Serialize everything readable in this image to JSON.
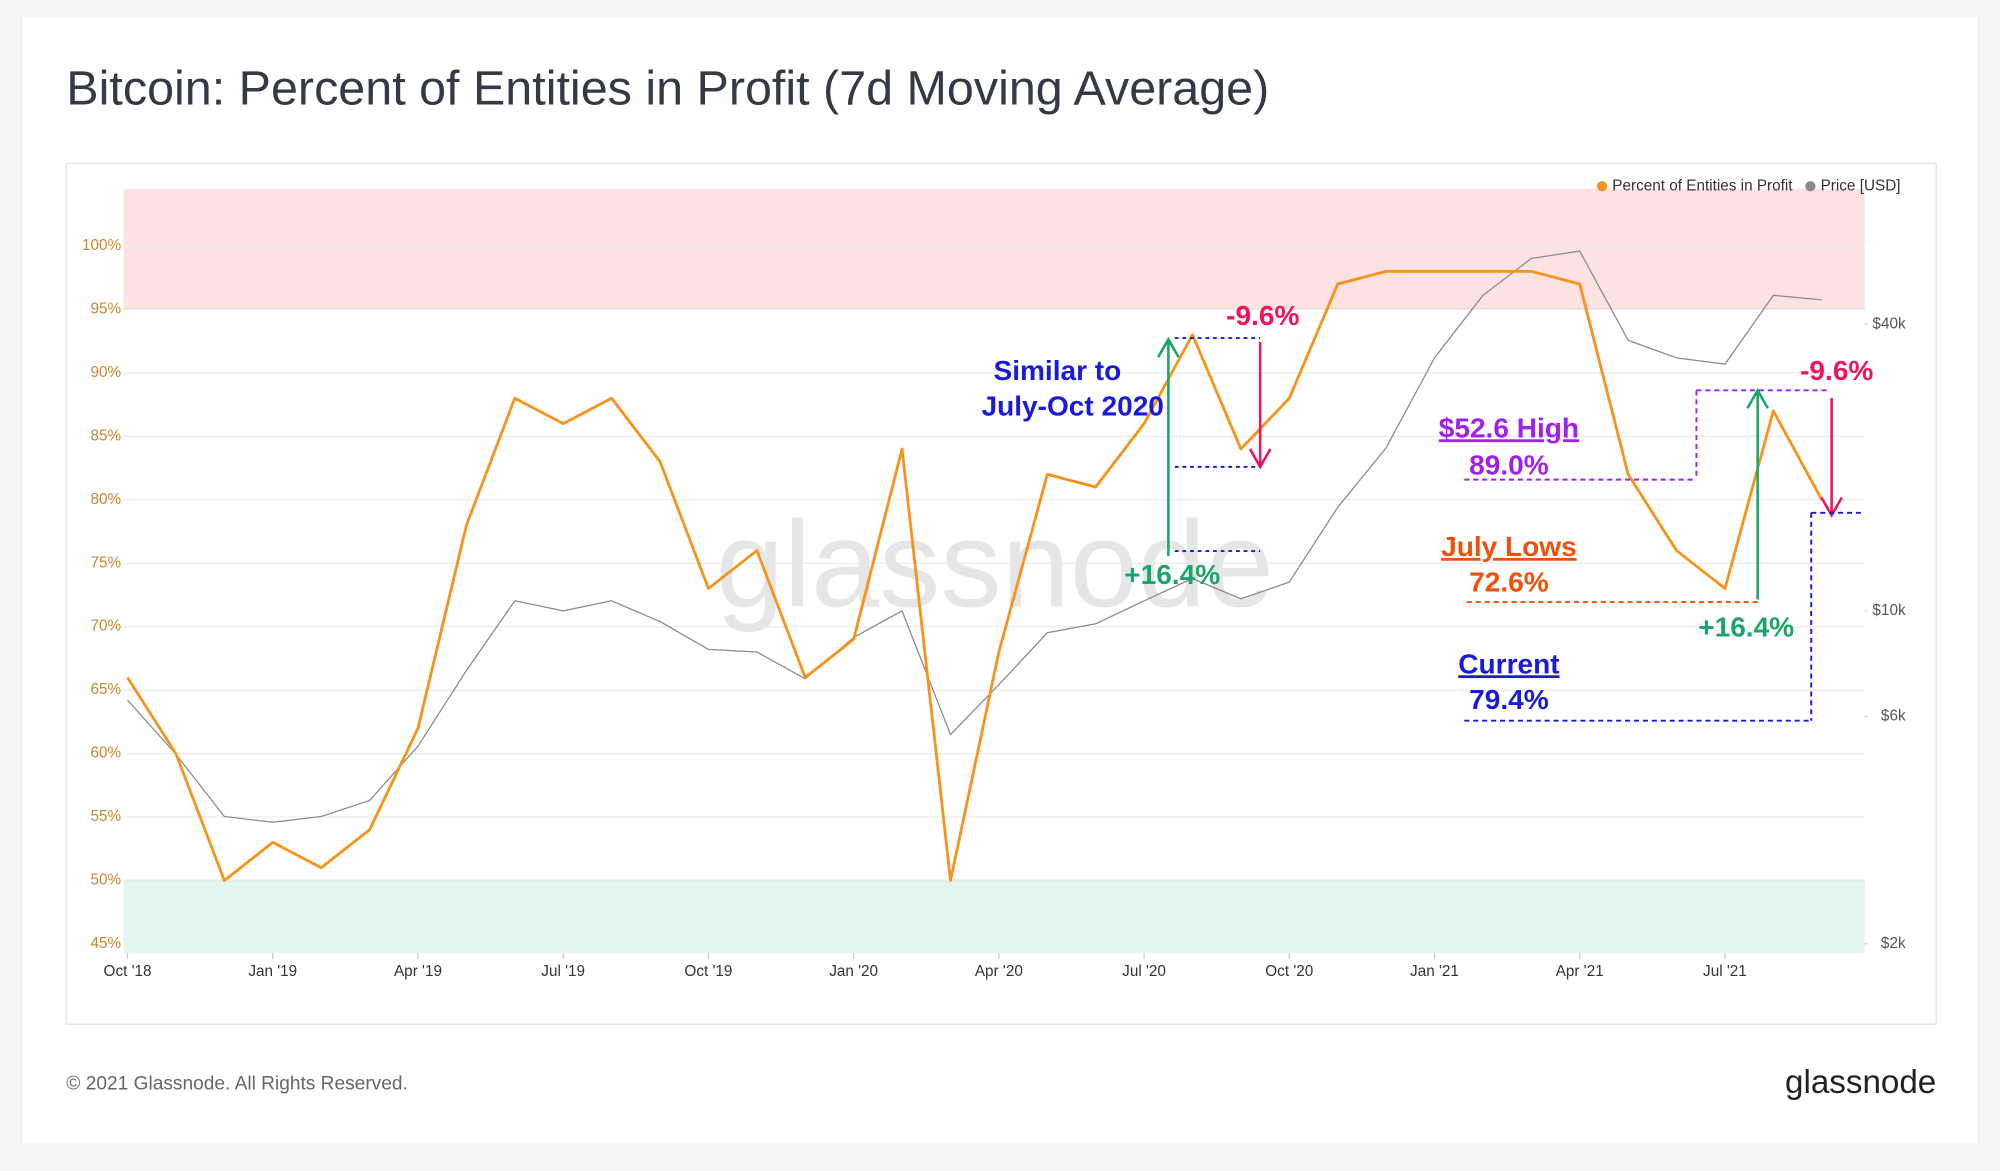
{
  "chart_data": {
    "type": "line",
    "title": "Bitcoin: Percent of Entities in Profit (7d Moving Average)",
    "x": [
      "2018-10",
      "2018-11",
      "2018-12",
      "2019-01",
      "2019-02",
      "2019-03",
      "2019-04",
      "2019-05",
      "2019-06",
      "2019-07",
      "2019-08",
      "2019-09",
      "2019-10",
      "2019-11",
      "2019-12",
      "2020-01",
      "2020-02",
      "2020-03",
      "2020-04",
      "2020-05",
      "2020-06",
      "2020-07",
      "2020-08",
      "2020-09",
      "2020-10",
      "2020-11",
      "2020-12",
      "2021-01",
      "2021-02",
      "2021-03",
      "2021-04",
      "2021-05",
      "2021-06",
      "2021-07",
      "2021-08",
      "2021-09"
    ],
    "series": [
      {
        "name": "Percent of Entities in Profit",
        "color": "#f7931a",
        "axis": "y",
        "values": [
          66,
          60,
          50,
          53,
          51,
          54,
          62,
          78,
          88,
          86,
          88,
          83,
          73,
          76,
          66,
          69,
          84,
          50,
          68,
          82,
          81,
          86,
          93,
          84,
          88,
          97,
          98,
          98,
          98,
          98,
          97,
          82,
          76,
          73,
          87,
          80
        ]
      },
      {
        "name": "Price [USD]",
        "color": "#8a8a8a",
        "axis": "y2",
        "values": [
          6500,
          5000,
          3700,
          3600,
          3700,
          4000,
          5200,
          7500,
          10500,
          10000,
          10500,
          9500,
          8300,
          8200,
          7200,
          8800,
          10000,
          5500,
          7000,
          9000,
          9400,
          10500,
          11700,
          10600,
          11500,
          16500,
          22000,
          34000,
          46000,
          55000,
          57000,
          37000,
          34000,
          33000,
          46000,
          45000
        ]
      }
    ],
    "ylim": [
      44.3,
      104.5
    ],
    "yticks": [
      {
        "value": 45,
        "label": "45%"
      },
      {
        "value": 50,
        "label": "50%"
      },
      {
        "value": 55,
        "label": "55%"
      },
      {
        "value": 60,
        "label": "60%"
      },
      {
        "value": 65,
        "label": "65%"
      },
      {
        "value": 70,
        "label": "70%"
      },
      {
        "value": 75,
        "label": "75%"
      },
      {
        "value": 80,
        "label": "80%"
      },
      {
        "value": 85,
        "label": "85%"
      },
      {
        "value": 90,
        "label": "90%"
      },
      {
        "value": 95,
        "label": "95%"
      },
      {
        "value": 100,
        "label": "100%"
      }
    ],
    "y2lim": [
      1914,
      77000
    ],
    "y2scale": "log",
    "y2ticks": [
      {
        "value": 2000,
        "label": "$2k"
      },
      {
        "value": 6000,
        "label": "$6k"
      },
      {
        "value": 10000,
        "label": "$10k"
      },
      {
        "value": 40000,
        "label": "$40k"
      }
    ],
    "xticks": [
      {
        "value": "2018-10",
        "label": "Oct '18"
      },
      {
        "value": "2019-01",
        "label": "Jan '19"
      },
      {
        "value": "2019-04",
        "label": "Apr '19"
      },
      {
        "value": "2019-07",
        "label": "Jul '19"
      },
      {
        "value": "2019-10",
        "label": "Oct '19"
      },
      {
        "value": "2020-01",
        "label": "Jan '20"
      },
      {
        "value": "2020-04",
        "label": "Apr '20"
      },
      {
        "value": "2020-07",
        "label": "Jul '20"
      },
      {
        "value": "2020-10",
        "label": "Oct '20"
      },
      {
        "value": "2021-01",
        "label": "Jan '21"
      },
      {
        "value": "2021-04",
        "label": "Apr '21"
      },
      {
        "value": "2021-07",
        "label": "Jul '21"
      }
    ],
    "grid": true,
    "legend": "top-right",
    "bands": [
      {
        "from": 95,
        "to": 104.5,
        "color": "#fde2e2",
        "line": "#e88a8a"
      },
      {
        "from": 44.3,
        "to": 50,
        "color": "#e3f6ee",
        "line": "#5cc296"
      }
    ],
    "annotations": [
      "-9.6%",
      "Similar to",
      "July-Oct 2020",
      "+16.4%",
      "$52.6 High",
      "89.0%",
      "-9.6%",
      "July Lows",
      "72.6%",
      "+16.4%",
      "Current",
      "79.4%"
    ]
  },
  "watermark": "glassnode",
  "footer": {
    "copyright": "© 2021 Glassnode. All Rights Reserved.",
    "logo": "glassnode"
  }
}
